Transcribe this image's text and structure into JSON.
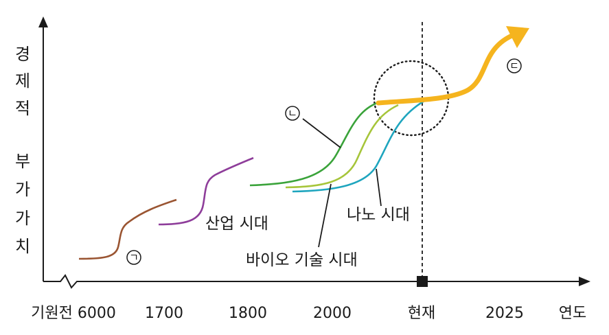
{
  "y_axis_chars": [
    "경",
    "제",
    "적",
    "부",
    "가",
    "가",
    "치"
  ],
  "x_axis": {
    "ticks": [
      "기원전 6000",
      "1700",
      "1800",
      "2000",
      "현재",
      "2025"
    ],
    "label": "연도"
  },
  "eras": {
    "industrial": "산업 시대",
    "biotech": "바이오 기술 시대",
    "nano": "나노 시대"
  },
  "markers": {
    "a": "ㄱ",
    "b": "ㄴ",
    "c": "ㄷ"
  },
  "colors": {
    "agricultural": "#9a5532",
    "industrial": "#8e3d9a",
    "info": "#3aa33a",
    "biotech": "#a6c53a",
    "nano": "#1ea5be",
    "future": "#f5b41e",
    "axis": "#1a1a1a"
  }
}
